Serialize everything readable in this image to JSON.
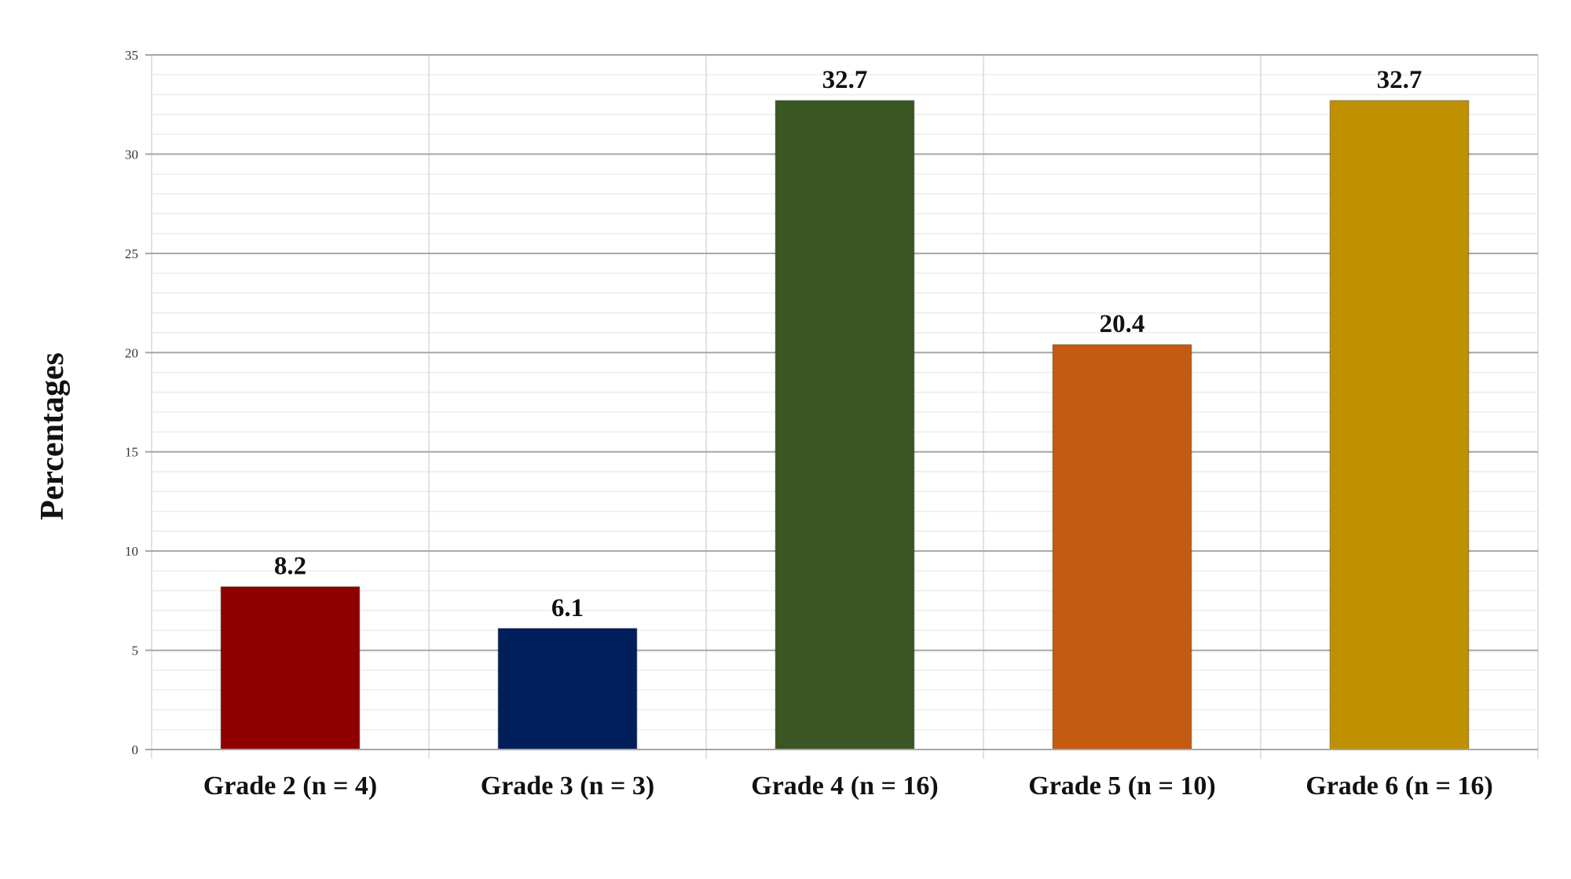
{
  "chart_data": {
    "type": "bar",
    "title": "",
    "xlabel": "",
    "ylabel": "Percentages",
    "categories": [
      "Grade 2 (n = 4)",
      "Grade 3 (n = 3)",
      "Grade 4 (n = 16)",
      "Grade 5 (n = 10)",
      "Grade 6 (n = 16)"
    ],
    "values": [
      8.2,
      6.1,
      32.7,
      20.4,
      32.7
    ],
    "data_labels": [
      "8.2",
      "6.1",
      "32.7",
      "20.4",
      "32.7"
    ],
    "bar_colors": [
      "#8e0000",
      "#001f5b",
      "#3a5622",
      "#c55a11",
      "#bf9000"
    ],
    "ylim": [
      0,
      35
    ],
    "yticks": [
      0,
      5,
      10,
      15,
      20,
      25,
      30,
      35
    ],
    "grid": true,
    "legend": "none"
  }
}
